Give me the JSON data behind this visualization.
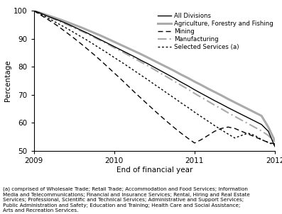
{
  "ylabel": "Percentage",
  "xlabel": "End of financial year",
  "xlim": [
    2009.0,
    2012.0
  ],
  "ylim": [
    50,
    100
  ],
  "yticks": [
    50,
    60,
    70,
    80,
    90,
    100
  ],
  "xticks": [
    2009,
    2010,
    2011,
    2012
  ],
  "x": [
    2009.0,
    2009.083,
    2009.167,
    2009.25,
    2009.333,
    2009.417,
    2009.5,
    2009.583,
    2009.667,
    2009.75,
    2009.833,
    2009.917,
    2010.0,
    2010.083,
    2010.167,
    2010.25,
    2010.333,
    2010.417,
    2010.5,
    2010.583,
    2010.667,
    2010.75,
    2010.833,
    2010.917,
    2011.0,
    2011.083,
    2011.167,
    2011.25,
    2011.333,
    2011.417,
    2011.5,
    2011.583,
    2011.667,
    2011.75,
    2011.833,
    2011.917,
    2012.0
  ],
  "all_divisions": [
    100,
    99.1,
    98.1,
    97.2,
    96.3,
    95.3,
    94.2,
    93.1,
    92.0,
    90.8,
    89.6,
    88.4,
    87.2,
    86.0,
    84.8,
    83.6,
    82.3,
    81.1,
    79.8,
    78.5,
    77.2,
    75.9,
    74.5,
    73.2,
    71.8,
    70.5,
    69.2,
    67.9,
    66.7,
    65.4,
    64.2,
    63.0,
    61.8,
    60.6,
    59.4,
    57.0,
    51.5
  ],
  "agriculture": [
    100,
    99.2,
    98.4,
    97.6,
    96.8,
    95.9,
    95.0,
    94.1,
    93.1,
    92.1,
    91.1,
    90.0,
    88.9,
    87.8,
    86.7,
    85.6,
    84.5,
    83.3,
    82.1,
    80.9,
    79.7,
    78.5,
    77.2,
    76.0,
    74.7,
    73.5,
    72.2,
    71.0,
    69.8,
    68.5,
    67.3,
    66.1,
    64.9,
    63.7,
    62.5,
    58.5,
    53.5
  ],
  "mining": [
    100,
    98.5,
    97.0,
    95.5,
    93.8,
    92.0,
    90.2,
    88.3,
    86.3,
    84.3,
    82.2,
    80.0,
    77.8,
    75.6,
    73.3,
    71.0,
    68.8,
    66.6,
    64.4,
    62.3,
    60.2,
    58.2,
    56.3,
    54.5,
    52.8,
    54.0,
    55.5,
    57.0,
    58.0,
    58.5,
    58.0,
    57.0,
    56.0,
    55.0,
    54.0,
    53.0,
    52.5
  ],
  "manufacturing": [
    100,
    99.0,
    98.0,
    97.0,
    96.0,
    95.0,
    93.9,
    92.8,
    91.7,
    90.5,
    89.3,
    88.1,
    86.8,
    85.6,
    84.3,
    83.0,
    81.7,
    80.4,
    79.0,
    77.6,
    76.2,
    74.8,
    73.4,
    72.0,
    70.5,
    69.1,
    67.7,
    66.3,
    65.0,
    63.6,
    62.3,
    61.0,
    59.7,
    58.4,
    57.1,
    55.5,
    53.0
  ],
  "selected_services": [
    100,
    98.8,
    97.5,
    96.2,
    94.9,
    93.6,
    92.2,
    90.8,
    89.4,
    87.9,
    86.4,
    84.9,
    83.3,
    81.8,
    80.2,
    78.6,
    77.0,
    75.4,
    73.7,
    72.1,
    70.4,
    68.8,
    67.1,
    65.5,
    63.8,
    62.2,
    60.6,
    59.0,
    57.5,
    56.0,
    54.6,
    55.5,
    56.3,
    55.5,
    54.0,
    53.0,
    52.0
  ],
  "color_all": "#000000",
  "color_agri": "#aaaaaa",
  "color_mining": "#000000",
  "color_manuf": "#aaaaaa",
  "color_services": "#000000",
  "footnote": "(a) comprised of Wholesale Trade; Retail Trade; Accommodation and Food Services; Information\nMedia and Telecommunications; Financial and Insurance Services; Rental, Hiring and Real Estate\nServices; Professional, Scientific and Technical Services; Administrative and Support Services;\nPublic Administration and Safety; Education and Training; Health Care and Social Assistance;\nArts and Recreation Services."
}
